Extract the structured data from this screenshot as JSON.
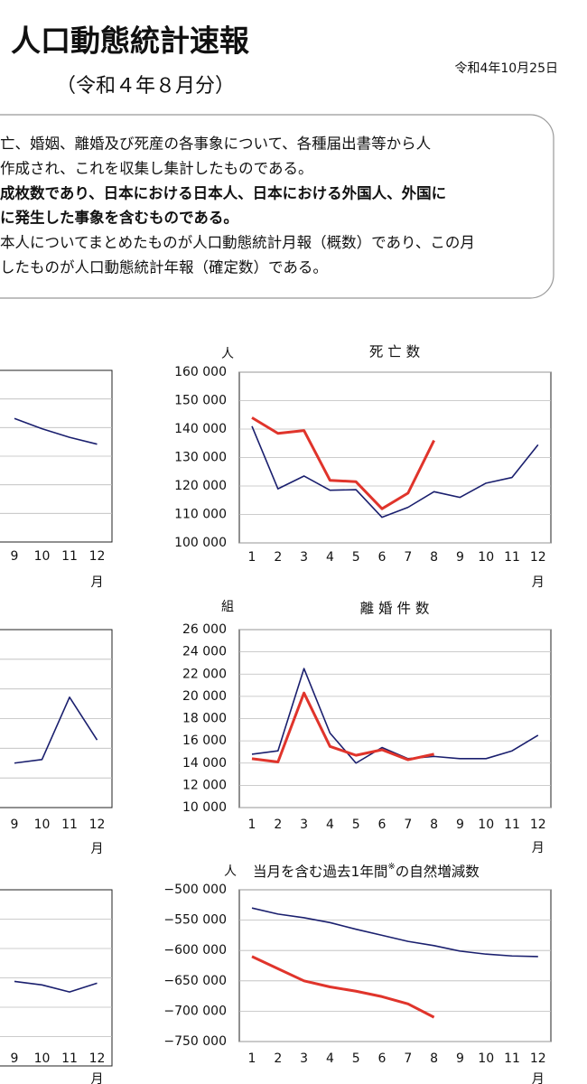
{
  "header": {
    "title": "人口動態統計速報",
    "subtitle": "（令和４年８月分）",
    "date": "令和4年10月25日"
  },
  "notice": {
    "lines": [
      {
        "text": "亡、婚姻、離婚及び死産の各事象について、各種届出書等から人",
        "bold": false
      },
      {
        "text": "作成され、これを収集し集計したものである。",
        "bold": false
      },
      {
        "text": "成枚数であり、日本における日本人、日本における外国人、外国に",
        "bold": true
      },
      {
        "text": "に発生した事象を含むものである。",
        "bold": true
      },
      {
        "text": "本人についてまとめたものが人口動態統計月報（概数）であり、この月",
        "bold": false
      },
      {
        "text": "したものが人口動態統計年報（確定数）である。",
        "bold": false
      }
    ]
  },
  "chart_data": [
    {
      "type": "line",
      "x_label": "月",
      "categories": [
        "9",
        "10",
        "11",
        "12"
      ],
      "ylim": [
        0,
        100
      ],
      "yticks": [],
      "grid": true,
      "series": [
        {
          "color": "#1a1f6e",
          "values": [
            72,
            66,
            61,
            57
          ]
        }
      ]
    },
    {
      "type": "line",
      "x_label": "月",
      "categories": [
        "9",
        "10",
        "11",
        "12"
      ],
      "ylim": [
        0,
        100
      ],
      "yticks": [],
      "grid": true,
      "series": [
        {
          "color": "#1a1f6e",
          "values": [
            25,
            27,
            62,
            38
          ]
        }
      ]
    },
    {
      "type": "line",
      "x_label": "月",
      "categories": [
        "9",
        "10",
        "11",
        "12"
      ],
      "ylim": [
        0,
        100
      ],
      "yticks": [],
      "grid": true,
      "series": [
        {
          "color": "#1a1f6e",
          "values": [
            48,
            46,
            42,
            47
          ]
        }
      ]
    },
    {
      "type": "line",
      "title": "死 亡 数",
      "y_label": "人",
      "x_label": "月",
      "categories": [
        "1",
        "2",
        "3",
        "4",
        "5",
        "6",
        "7",
        "8",
        "9",
        "10",
        "11",
        "12"
      ],
      "ylim": [
        100000,
        160000
      ],
      "grid": true,
      "yticks": [
        {
          "value": 100000,
          "label": "100 000"
        },
        {
          "value": 110000,
          "label": "110 000"
        },
        {
          "value": 120000,
          "label": "120 000"
        },
        {
          "value": 130000,
          "label": "130 000"
        },
        {
          "value": 140000,
          "label": "140 000"
        },
        {
          "value": 150000,
          "label": "150 000"
        },
        {
          "value": 160000,
          "label": "160 000"
        }
      ],
      "series": [
        {
          "color": "#1a1f6e",
          "values": [
            141000,
            119000,
            123500,
            118500,
            118700,
            109000,
            112500,
            118000,
            116000,
            121000,
            123000,
            134500
          ]
        },
        {
          "color": "#e0342b",
          "values": [
            144000,
            138500,
            139500,
            122000,
            121500,
            112000,
            117500,
            136000,
            null,
            null,
            null,
            null
          ]
        }
      ]
    },
    {
      "type": "line",
      "title": "離 婚 件 数",
      "y_label": "組",
      "x_label": "月",
      "categories": [
        "1",
        "2",
        "3",
        "4",
        "5",
        "6",
        "7",
        "8",
        "9",
        "10",
        "11",
        "12"
      ],
      "ylim": [
        10000,
        26000
      ],
      "grid": true,
      "yticks": [
        {
          "value": 10000,
          "label": "10 000"
        },
        {
          "value": 12000,
          "label": "12 000"
        },
        {
          "value": 14000,
          "label": "14 000"
        },
        {
          "value": 16000,
          "label": "16 000"
        },
        {
          "value": 18000,
          "label": "18 000"
        },
        {
          "value": 20000,
          "label": "20 000"
        },
        {
          "value": 22000,
          "label": "22 000"
        },
        {
          "value": 24000,
          "label": "24 000"
        },
        {
          "value": 26000,
          "label": "26 000"
        }
      ],
      "series": [
        {
          "color": "#1a1f6e",
          "values": [
            14800,
            15100,
            22500,
            16700,
            14000,
            15400,
            14400,
            14600,
            14400,
            14400,
            15100,
            16500
          ]
        },
        {
          "color": "#e0342b",
          "values": [
            14400,
            14100,
            20300,
            15500,
            14700,
            15200,
            14300,
            14800,
            null,
            null,
            null,
            null
          ]
        }
      ]
    },
    {
      "type": "line",
      "title": [
        "当月を含む過去1年間",
        "※",
        "の自然増減数"
      ],
      "y_label": "人",
      "x_label": "月",
      "categories": [
        "1",
        "2",
        "3",
        "4",
        "5",
        "6",
        "7",
        "8",
        "9",
        "10",
        "11",
        "12"
      ],
      "ylim": [
        -750000,
        -500000
      ],
      "grid": true,
      "yticks": [
        {
          "value": -750000,
          "label": "−750 000"
        },
        {
          "value": -700000,
          "label": "−700 000"
        },
        {
          "value": -650000,
          "label": "−650 000"
        },
        {
          "value": -600000,
          "label": "−600 000"
        },
        {
          "value": -550000,
          "label": "−550 000"
        },
        {
          "value": -500000,
          "label": "−500 000"
        }
      ],
      "series": [
        {
          "color": "#1a1f6e",
          "values": [
            -530000,
            -540000,
            -546000,
            -554000,
            -565000,
            -575000,
            -585000,
            -592000,
            -601000,
            -606000,
            -609000,
            -610000
          ]
        },
        {
          "color": "#e0342b",
          "values": [
            -610000,
            -630000,
            -650000,
            -660000,
            -667000,
            -676000,
            -688000,
            -710000,
            null,
            null,
            null,
            null
          ]
        }
      ]
    }
  ]
}
